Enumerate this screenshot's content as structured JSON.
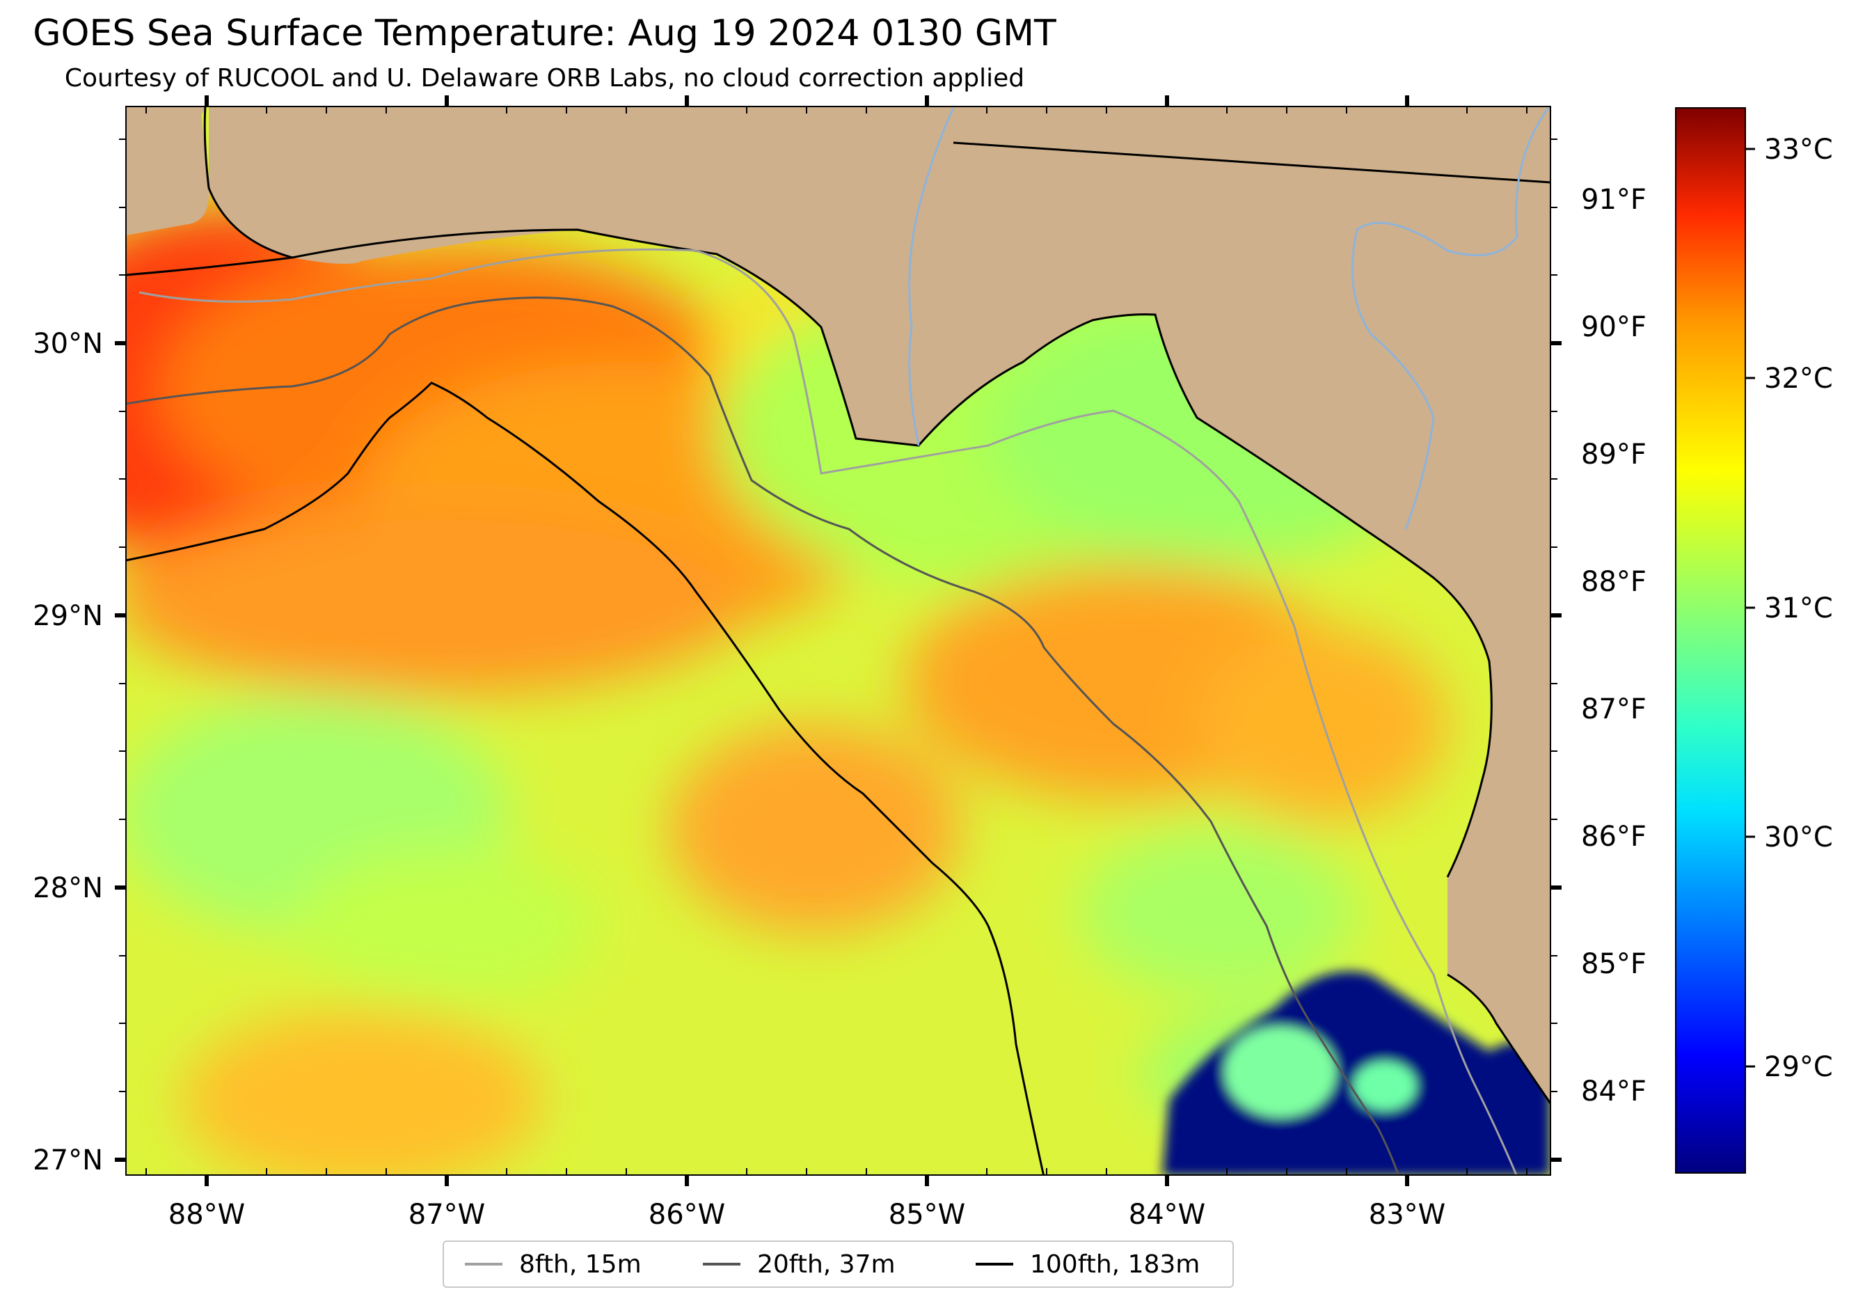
{
  "title": "GOES Sea Surface Temperature: Aug 19 2024 0130 GMT",
  "subtitle": "Courtesy of RUCOOL and U. Delaware ORB Labs, no cloud correction applied",
  "map": {
    "lon_labels": [
      "88°W",
      "87°W",
      "86°W",
      "85°W",
      "84°W",
      "83°W"
    ],
    "lat_labels": [
      "30°N",
      "29°N",
      "28°N",
      "27°N"
    ],
    "fahrenheit_labels": [
      "91°F",
      "90°F",
      "89°F",
      "88°F",
      "87°F",
      "86°F",
      "85°F",
      "84°F"
    ],
    "lon_range": [
      -88.33,
      -82.38
    ],
    "lat_range": [
      26.95,
      30.88
    ],
    "colors": {
      "land": "#cfb08c",
      "river": "#8fb3d9",
      "cold_patch": "#000a80",
      "isobath_8fth": "#a0a0a0",
      "isobath_20fth": "#555555",
      "isobath_100fth": "#000000"
    }
  },
  "colorbar": {
    "colormap": "jet",
    "range_c": [
      28.65,
      33.3
    ],
    "celsius_labels": [
      "33°C",
      "32°C",
      "31°C",
      "30°C",
      "29°C"
    ]
  },
  "legend": {
    "items": [
      {
        "label": "8fth, 15m",
        "color": "#a0a0a0"
      },
      {
        "label": "20fth, 37m",
        "color": "#555555"
      },
      {
        "label": "100fth, 183m",
        "color": "#000000"
      }
    ]
  }
}
